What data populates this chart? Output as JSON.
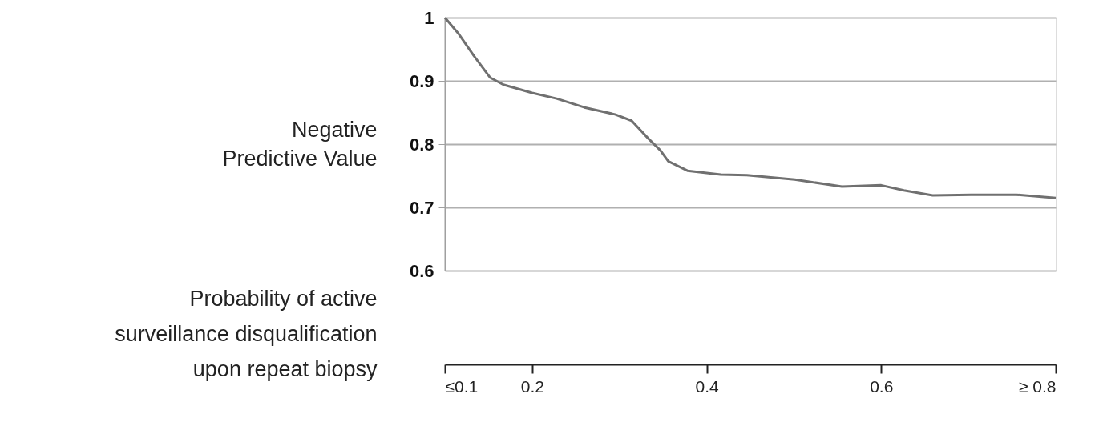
{
  "chart_data": {
    "type": "line",
    "xlabel": "Probability of active surveillance disqualification upon repeat biopsy",
    "ylabel": "Negative Predictive Value",
    "x": [
      0.1,
      0.116,
      0.133,
      0.152,
      0.167,
      0.2,
      0.228,
      0.26,
      0.295,
      0.314,
      0.333,
      0.347,
      0.356,
      0.378,
      0.416,
      0.446,
      0.501,
      0.555,
      0.6,
      0.626,
      0.659,
      0.703,
      0.755,
      0.8
    ],
    "series": [
      {
        "color": "#707070",
        "values": [
          1.0,
          0.974,
          0.94,
          0.905,
          0.894,
          0.881,
          0.872,
          0.858,
          0.847,
          0.837,
          0.809,
          0.79,
          0.773,
          0.758,
          0.752,
          0.751,
          0.744,
          0.733,
          0.735,
          0.727,
          0.719,
          0.72,
          0.72,
          0.715
        ]
      }
    ],
    "xlim": [
      0.1,
      0.8
    ],
    "xticks": [
      {
        "value": 0.1,
        "label": "≤0.1"
      },
      0.2,
      0.4,
      0.6,
      {
        "value": 0.8,
        "label": "≥ 0.8"
      }
    ],
    "ylim": [
      0.6,
      1
    ],
    "yticks": [
      0.6,
      0.7,
      0.8,
      0.9,
      {
        "value": 1,
        "label": "1"
      }
    ],
    "grid": "y",
    "marker": "none",
    "line_style": "solid"
  }
}
